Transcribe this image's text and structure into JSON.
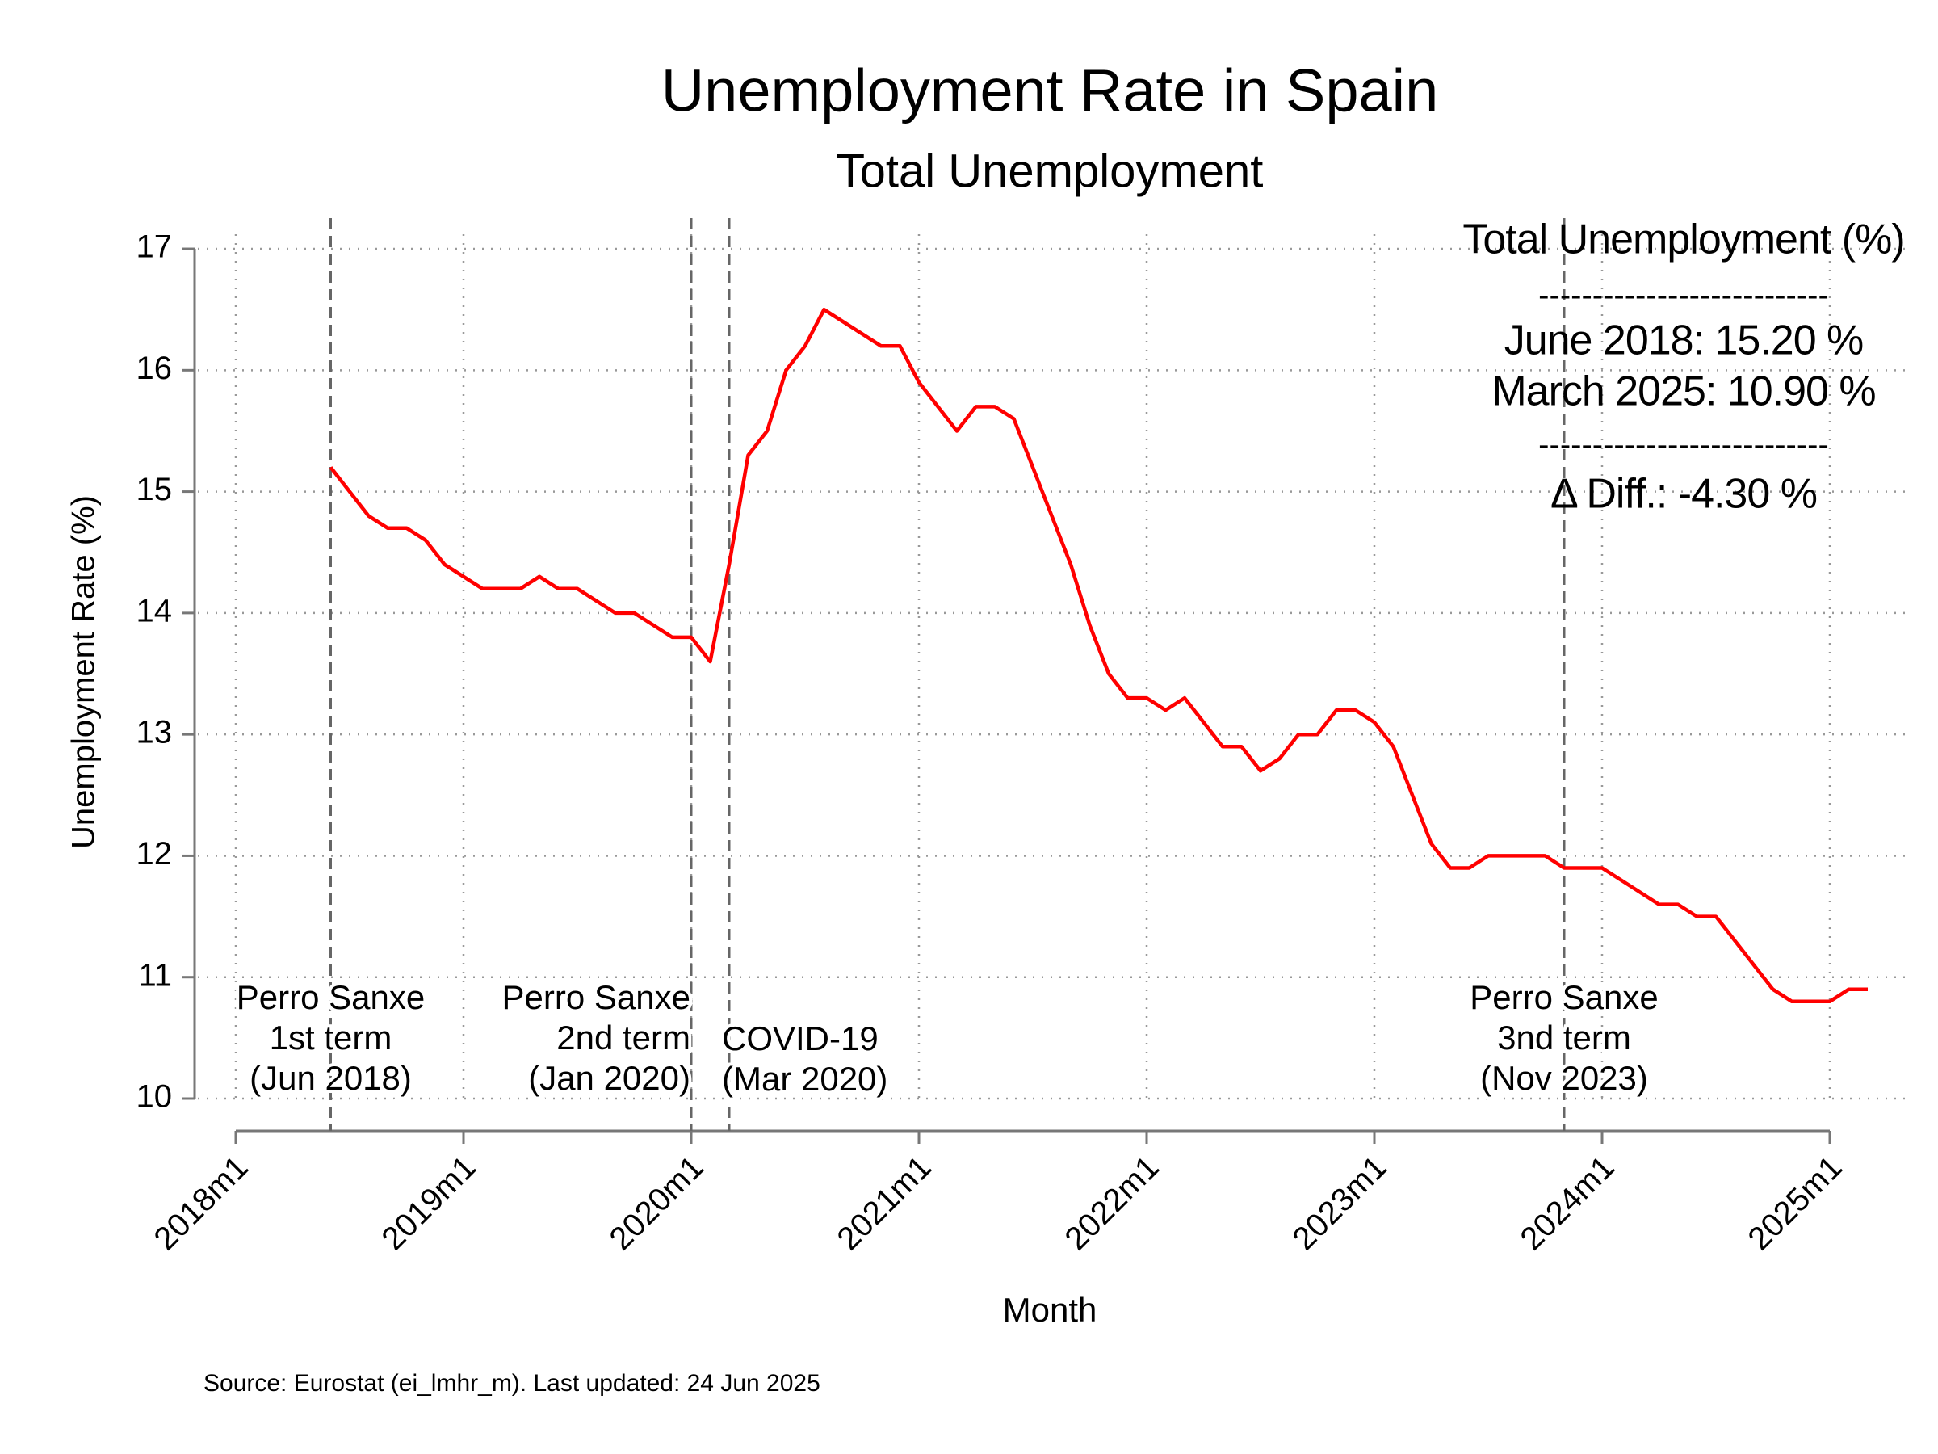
{
  "chart_data": {
    "type": "line",
    "title": "Unemployment Rate in Spain",
    "subtitle": "Total Unemployment",
    "x_label": "Month",
    "y_label": "Unemployment Rate (%)",
    "source": "Source: Eurostat (ei_lmhr_m). Last updated: 24 Jun 2025",
    "x": [
      "2018m6",
      "2018m7",
      "2018m8",
      "2018m9",
      "2018m10",
      "2018m11",
      "2018m12",
      "2019m1",
      "2019m2",
      "2019m3",
      "2019m4",
      "2019m5",
      "2019m6",
      "2019m7",
      "2019m8",
      "2019m9",
      "2019m10",
      "2019m11",
      "2019m12",
      "2020m1",
      "2020m2",
      "2020m3",
      "2020m4",
      "2020m5",
      "2020m6",
      "2020m7",
      "2020m8",
      "2020m9",
      "2020m10",
      "2020m11",
      "2020m12",
      "2021m1",
      "2021m2",
      "2021m3",
      "2021m4",
      "2021m5",
      "2021m6",
      "2021m7",
      "2021m8",
      "2021m9",
      "2021m10",
      "2021m11",
      "2021m12",
      "2022m1",
      "2022m2",
      "2022m3",
      "2022m4",
      "2022m5",
      "2022m6",
      "2022m7",
      "2022m8",
      "2022m9",
      "2022m10",
      "2022m11",
      "2022m12",
      "2023m1",
      "2023m2",
      "2023m3",
      "2023m4",
      "2023m5",
      "2023m6",
      "2023m7",
      "2023m8",
      "2023m9",
      "2023m10",
      "2023m11",
      "2023m12",
      "2024m1",
      "2024m2",
      "2024m3",
      "2024m4",
      "2024m5",
      "2024m6",
      "2024m7",
      "2024m8",
      "2024m9",
      "2024m10",
      "2024m11",
      "2024m12",
      "2025m1",
      "2025m2",
      "2025m3"
    ],
    "series": [
      {
        "name": "Total Unemployment (%)",
        "color": "#ff0000",
        "values": [
          15.2,
          15.0,
          14.8,
          14.7,
          14.7,
          14.6,
          14.4,
          14.3,
          14.2,
          14.2,
          14.2,
          14.3,
          14.2,
          14.2,
          14.1,
          14.0,
          14.0,
          13.9,
          13.8,
          13.8,
          13.6,
          14.4,
          15.3,
          15.5,
          16.0,
          16.2,
          16.5,
          16.4,
          16.3,
          16.2,
          16.2,
          15.9,
          15.7,
          15.5,
          15.7,
          15.7,
          15.6,
          15.2,
          14.8,
          14.4,
          13.9,
          13.5,
          13.3,
          13.3,
          13.2,
          13.3,
          13.1,
          12.9,
          12.9,
          12.7,
          12.8,
          13.0,
          13.0,
          13.2,
          13.2,
          13.1,
          12.9,
          12.5,
          12.1,
          11.9,
          11.9,
          12.0,
          12.0,
          12.0,
          12.0,
          11.9,
          11.9,
          11.9,
          11.8,
          11.7,
          11.6,
          11.6,
          11.5,
          11.5,
          11.3,
          11.1,
          10.9,
          10.8,
          10.8,
          10.8,
          10.9,
          10.9
        ]
      }
    ],
    "xlim": [
      "2017m11",
      "2025m5"
    ],
    "xticks": [
      "2018m1",
      "2019m1",
      "2020m1",
      "2021m1",
      "2022m1",
      "2023m1",
      "2024m1",
      "2025m1"
    ],
    "ylim": [
      10,
      17.12
    ],
    "yticks": [
      10,
      11,
      12,
      13,
      14,
      15,
      16,
      17
    ],
    "grid": true,
    "events": [
      {
        "x": "2018m6",
        "lines": [
          "Perro Sanxe",
          "1st term",
          "(Jun 2018)"
        ],
        "align": "middle"
      },
      {
        "x": "2020m1",
        "lines": [
          "Perro Sanxe",
          "2nd term",
          "(Jan 2020)"
        ],
        "align": "end"
      },
      {
        "x": "2020m3",
        "lines": [
          "COVID-19",
          "(Mar 2020)"
        ],
        "align": "start"
      },
      {
        "x": "2023m11",
        "lines": [
          "Perro Sanxe",
          "3nd term",
          "(Nov 2023)"
        ],
        "align": "middle"
      }
    ],
    "info_box": [
      "Total Unemployment (%)",
      "---------------------------",
      "June 2018: 15.20 %",
      "March 2025: 10.90 %",
      "---------------------------",
      "Δ Diff.: -4.30 %"
    ]
  }
}
